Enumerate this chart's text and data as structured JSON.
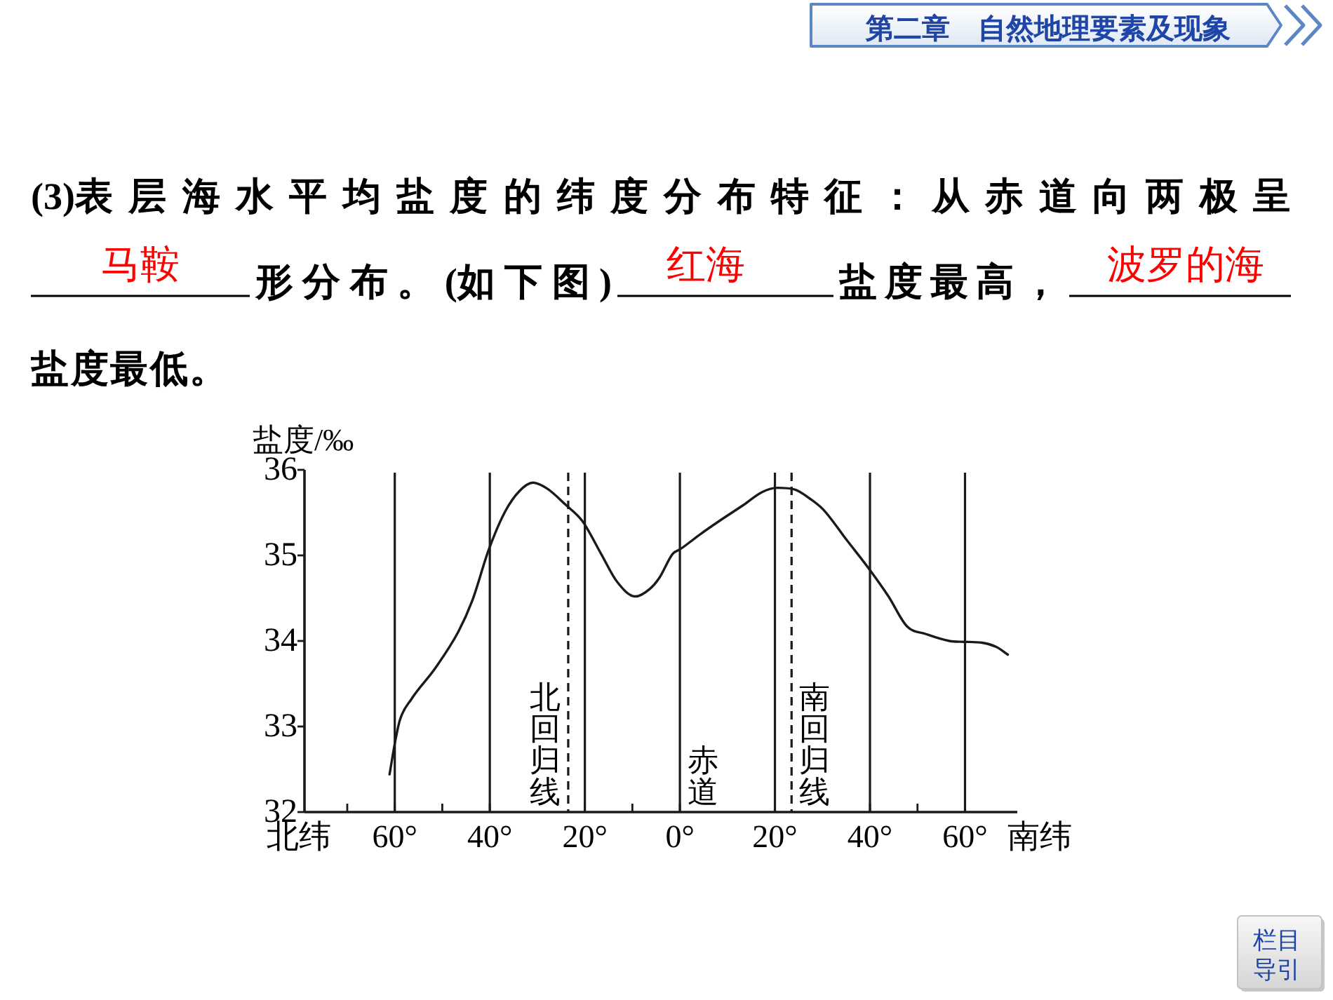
{
  "chart_data": {
    "type": "line",
    "ylabel": "盐度/‰",
    "x": [
      61.1,
      59.9,
      58.9,
      56.5,
      51.5,
      46.6,
      43.7,
      40.2,
      36.8,
      33.8,
      30.9,
      27.9,
      24.0,
      20.5,
      16.6,
      13.2,
      9.4,
      6.3,
      4.3,
      1.5,
      0,
      -4.6,
      -8.5,
      -13.4,
      -17.3,
      -20.5,
      -24.2,
      -27.2,
      -30.1,
      -35.1,
      -39.7,
      -43.9,
      -47.8,
      -51.8,
      -56.7,
      -59.7,
      -63.6,
      -66.6,
      -69.0
    ],
    "series": [
      {
        "color": "#1a1a1a",
        "values": [
          32.44,
          32.83,
          33.08,
          33.32,
          33.68,
          34.11,
          34.47,
          35.07,
          35.51,
          35.75,
          35.85,
          35.78,
          35.59,
          35.4,
          35.02,
          34.69,
          34.52,
          34.61,
          34.74,
          35.02,
          35.07,
          35.26,
          35.41,
          35.59,
          35.74,
          35.79,
          35.77,
          35.67,
          35.54,
          35.18,
          34.85,
          34.52,
          34.17,
          34.08,
          34.0,
          33.99,
          33.98,
          33.93,
          33.84
        ]
      }
    ],
    "xlim": [
      79,
      -71
    ],
    "ylim": [
      32,
      36
    ],
    "xticks": [
      {
        "value": -60,
        "label": "60°"
      },
      {
        "value": -50,
        "label": null
      },
      {
        "value": -40,
        "label": "40°"
      },
      {
        "value": -20,
        "label": "20°"
      },
      {
        "value": 0,
        "label": "0°"
      },
      {
        "value": 10,
        "label": null
      },
      {
        "value": 20,
        "label": "20°"
      },
      {
        "value": 40,
        "label": "40°"
      },
      {
        "value": 50,
        "label": null
      },
      {
        "value": 60,
        "label": "60°"
      },
      {
        "value": 70,
        "label": null
      }
    ],
    "yticks": [
      32,
      33,
      34,
      35,
      36
    ],
    "ref_lines": [
      {
        "axis": "x",
        "value": 60
      },
      {
        "axis": "x",
        "value": 40
      },
      {
        "axis": "x",
        "value": 20
      },
      {
        "axis": "x",
        "value": 0,
        "label": "赤道"
      },
      {
        "axis": "x",
        "value": -20
      },
      {
        "axis": "x",
        "value": -40
      },
      {
        "axis": "x",
        "value": -60
      },
      {
        "axis": "x",
        "value": 23.5,
        "label": "北回归线",
        "line_style": "dashed"
      },
      {
        "axis": "x",
        "value": -23.5,
        "label": "南回归线",
        "line_style": "dashed"
      }
    ],
    "annotations": [
      "第二章　自然地理要素及现象",
      "(3)表层海水平均盐度的纬度分布特征：从赤道向两极呈",
      "马鞍",
      "形分布。(如下图)",
      "红海",
      "盐度最高，",
      "波罗的海",
      "盐度最低。",
      "北纬",
      "南纬",
      "栏目导引"
    ]
  }
}
